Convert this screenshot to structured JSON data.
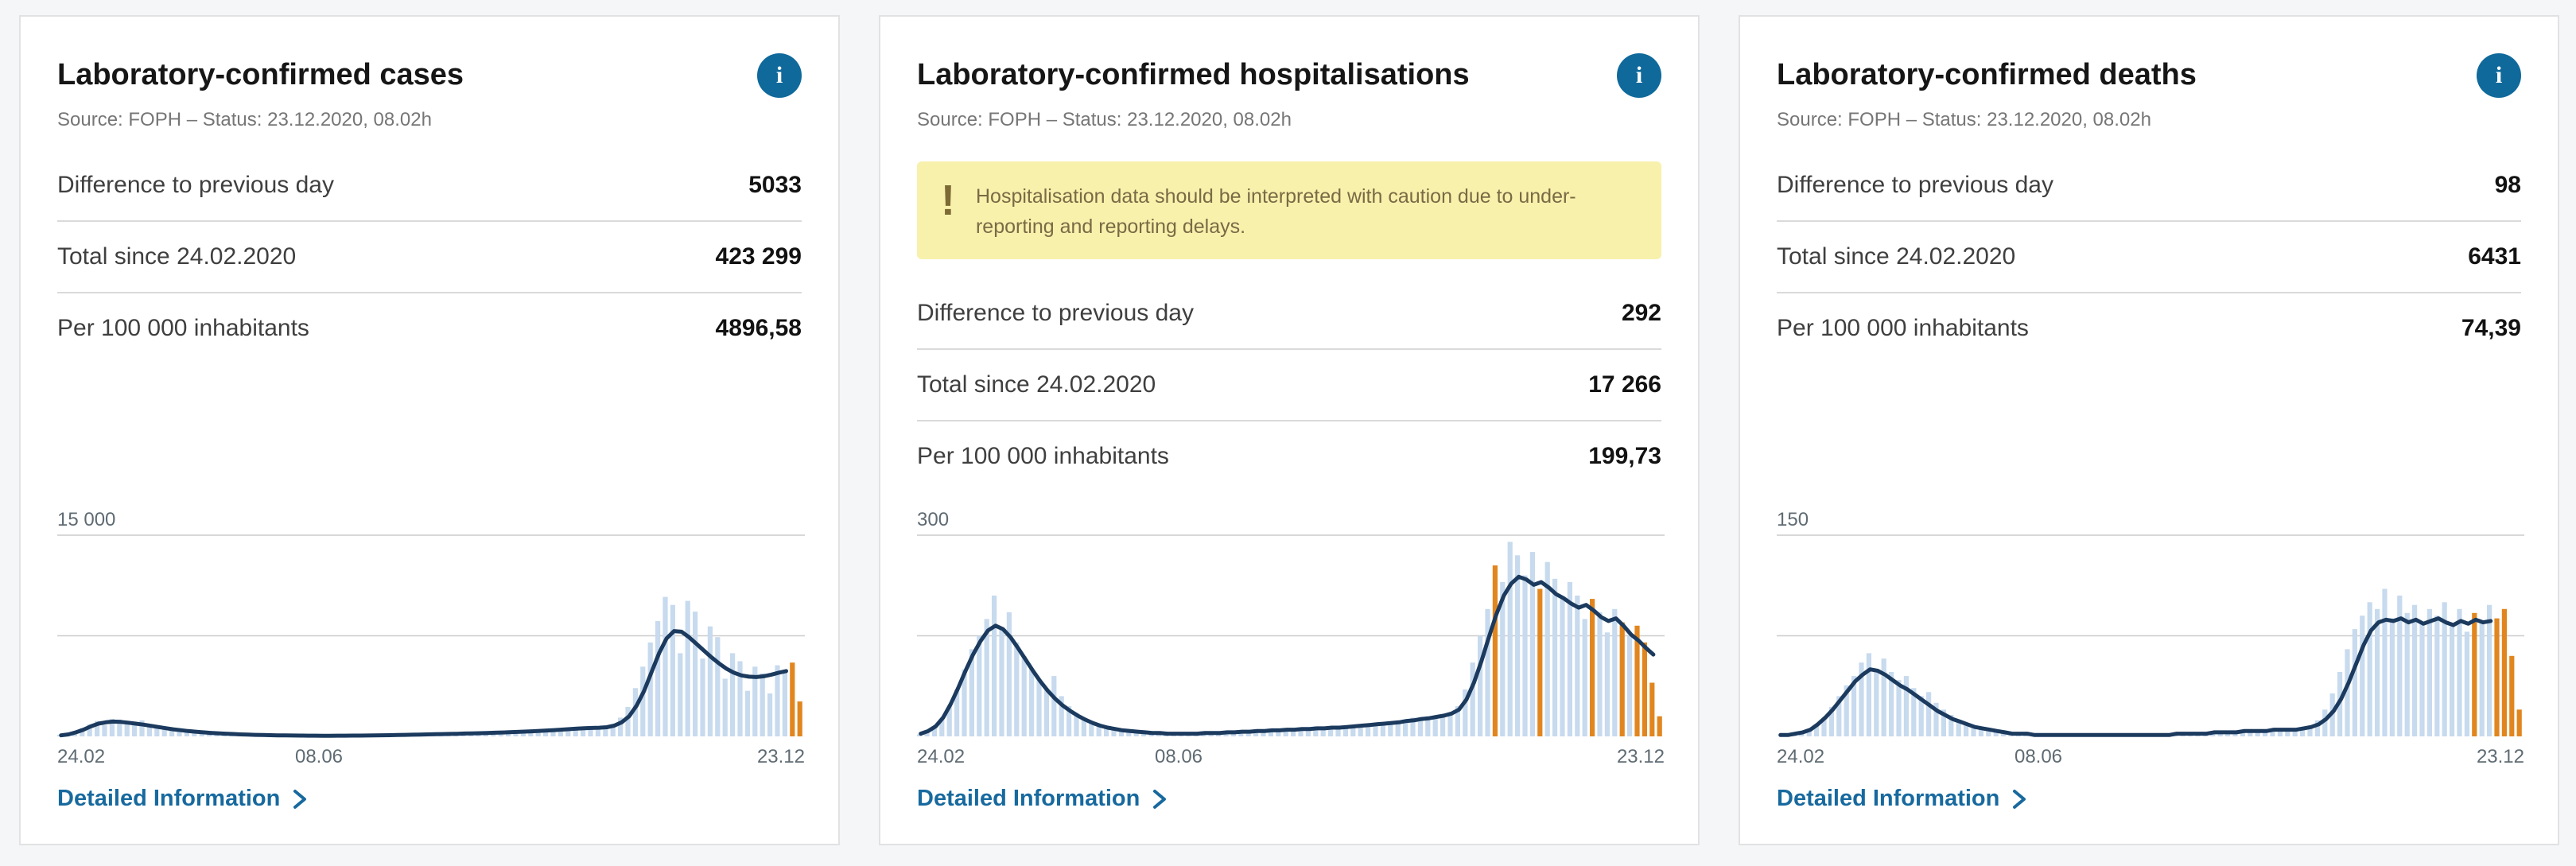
{
  "icons": {
    "info": "i",
    "warning": "!"
  },
  "colors": {
    "page_background": "#f4f6f8",
    "card_border": "#e2e2e2",
    "accent_link": "#17699e",
    "info_badge": "#0f699b",
    "warning_background": "#f8f1ac",
    "warning_foreground": "#7a6a45"
  },
  "cards": [
    {
      "title": "Laboratory-confirmed cases",
      "source": "Source: FOPH – Status: 23.12.2020, 08.02h",
      "stats": [
        {
          "label": "Difference to previous day",
          "value": "5033"
        },
        {
          "label": "Total since 24.02.2020",
          "value": "423 299"
        },
        {
          "label": "Per 100 000 inhabitants",
          "value": "4896,58"
        }
      ],
      "link_label": "Detailed Information"
    },
    {
      "title": "Laboratory-confirmed hospitalisations",
      "source": "Source: FOPH – Status: 23.12.2020, 08.02h",
      "warning_text": "Hospitalisation data should be interpreted with caution due to under-reporting and reporting delays.",
      "stats": [
        {
          "label": "Difference to previous day",
          "value": "292"
        },
        {
          "label": "Total since 24.02.2020",
          "value": "17 266"
        },
        {
          "label": "Per 100 000 inhabitants",
          "value": "199,73"
        }
      ],
      "link_label": "Detailed Information"
    },
    {
      "title": "Laboratory-confirmed deaths",
      "source": "Source: FOPH – Status: 23.12.2020, 08.02h",
      "stats": [
        {
          "label": "Difference to previous day",
          "value": "98"
        },
        {
          "label": "Total since 24.02.2020",
          "value": "6431"
        },
        {
          "label": "Per 100 000 inhabitants",
          "value": "74,39"
        }
      ],
      "link_label": "Detailed Information"
    }
  ],
  "chart_data": [
    {
      "type": "bar",
      "title": "",
      "x_ticks": [
        "24.02",
        "08.06",
        "23.12"
      ],
      "x_tick_positions": [
        0,
        0.35,
        1
      ],
      "ymax": 15000,
      "ymax_label": "15 000",
      "ylim": [
        0,
        15000
      ],
      "gridlines": [
        7500,
        15000
      ],
      "bars": [
        120,
        200,
        380,
        620,
        900,
        1150,
        850,
        1300,
        1250,
        1100,
        980,
        1200,
        880,
        720,
        600,
        500,
        430,
        360,
        300,
        260,
        220,
        185,
        155,
        125,
        105,
        90,
        80,
        70,
        62,
        56,
        50,
        46,
        42,
        40,
        36,
        40,
        46,
        42,
        50,
        46,
        56,
        62,
        70,
        66,
        82,
        92,
        102,
        112,
        132,
        122,
        152,
        172,
        162,
        182,
        202,
        222,
        212,
        252,
        272,
        302,
        322,
        352,
        332,
        382,
        422,
        452,
        482,
        522,
        502,
        552,
        602,
        582,
        652,
        702,
        900,
        1400,
        2200,
        3600,
        5200,
        7000,
        8600,
        10400,
        9800,
        6200,
        10100,
        9300,
        5800,
        8200,
        7400,
        4300,
        6200,
        5600,
        3400,
        5200,
        4700,
        3200,
        5300,
        4800,
        5500,
        2600
      ],
      "line": [
        80,
        150,
        300,
        500,
        750,
        950,
        1050,
        1100,
        1080,
        1020,
        950,
        880,
        790,
        700,
        610,
        530,
        460,
        400,
        350,
        300,
        260,
        230,
        200,
        175,
        150,
        130,
        115,
        100,
        90,
        80,
        72,
        65,
        60,
        56,
        52,
        50,
        50,
        52,
        55,
        58,
        62,
        68,
        75,
        82,
        90,
        100,
        110,
        122,
        135,
        148,
        160,
        172,
        185,
        198,
        212,
        226,
        240,
        255,
        272,
        290,
        310,
        332,
        355,
        380,
        408,
        438,
        470,
        505,
        540,
        575,
        605,
        628,
        648,
        680,
        800,
        1050,
        1500,
        2300,
        3400,
        4800,
        6200,
        7300,
        7850,
        7800,
        7400,
        6900,
        6400,
        5900,
        5450,
        5050,
        4750,
        4550,
        4450,
        4420,
        4480,
        4600,
        4750,
        4870,
        null,
        null
      ],
      "orange_indices": [
        98,
        99
      ],
      "colors": {
        "bar": "#c7daee",
        "line": "#1b3a5e",
        "provisional": "#e1861f",
        "grid": "#cccccc",
        "tick": "#5f6b73"
      }
    },
    {
      "type": "bar",
      "title": "",
      "x_ticks": [
        "24.02",
        "08.06",
        "23.12"
      ],
      "x_tick_positions": [
        0,
        0.35,
        1
      ],
      "ymax": 300,
      "ymax_label": "300",
      "ylim": [
        0,
        300
      ],
      "gridlines": [
        150,
        300
      ],
      "bars": [
        3,
        6,
        12,
        25,
        45,
        70,
        100,
        130,
        150,
        175,
        210,
        160,
        185,
        140,
        120,
        100,
        85,
        70,
        90,
        60,
        45,
        35,
        28,
        22,
        18,
        14,
        10,
        8,
        7,
        6,
        5,
        4,
        5,
        4,
        3,
        4,
        3,
        4,
        5,
        4,
        5,
        6,
        8,
        6,
        9,
        7,
        10,
        8,
        11,
        9,
        12,
        10,
        13,
        11,
        14,
        12,
        15,
        13,
        16,
        18,
        15,
        20,
        17,
        22,
        19,
        25,
        28,
        24,
        30,
        26,
        32,
        35,
        45,
        70,
        110,
        150,
        190,
        255,
        230,
        290,
        270,
        240,
        275,
        220,
        260,
        235,
        205,
        230,
        210,
        175,
        205,
        185,
        155,
        190,
        170,
        150,
        165,
        140,
        80,
        30
      ],
      "line": [
        4,
        8,
        15,
        28,
        48,
        72,
        98,
        122,
        142,
        158,
        165,
        160,
        148,
        132,
        115,
        98,
        82,
        68,
        56,
        46,
        38,
        31,
        25,
        20,
        16,
        13,
        11,
        9,
        8,
        7,
        6,
        5,
        5,
        4,
        4,
        4,
        4,
        4,
        5,
        5,
        5,
        6,
        6,
        7,
        7,
        8,
        8,
        9,
        9,
        10,
        10,
        11,
        11,
        12,
        12,
        13,
        13,
        14,
        15,
        16,
        17,
        18,
        19,
        20,
        21,
        23,
        24,
        26,
        27,
        29,
        31,
        34,
        40,
        55,
        80,
        112,
        148,
        182,
        210,
        228,
        238,
        234,
        226,
        230,
        222,
        212,
        206,
        198,
        192,
        196,
        188,
        178,
        172,
        176,
        165,
        152,
        143,
        132,
        122,
        null
      ],
      "orange_indices": [
        77,
        83,
        90,
        94,
        96,
        97,
        98,
        99
      ],
      "colors": {
        "bar": "#c7daee",
        "line": "#1b3a5e",
        "provisional": "#e1861f",
        "grid": "#cccccc",
        "tick": "#5f6b73"
      }
    },
    {
      "type": "bar",
      "title": "",
      "x_ticks": [
        "24.02",
        "08.06",
        "23.12"
      ],
      "x_tick_positions": [
        0,
        0.35,
        1
      ],
      "ymax": 150,
      "ymax_label": "150",
      "ylim": [
        0,
        150
      ],
      "gridlines": [
        75,
        150
      ],
      "bars": [
        0,
        0,
        1,
        2,
        4,
        8,
        14,
        22,
        30,
        38,
        45,
        55,
        62,
        50,
        58,
        48,
        42,
        45,
        36,
        30,
        33,
        25,
        20,
        16,
        12,
        10,
        8,
        6,
        4,
        3,
        2,
        2,
        1,
        1,
        1,
        1,
        1,
        0,
        1,
        0,
        1,
        1,
        0,
        1,
        1,
        0,
        1,
        1,
        1,
        0,
        1,
        1,
        1,
        1,
        2,
        1,
        2,
        2,
        3,
        2,
        4,
        3,
        5,
        4,
        3,
        5,
        4,
        6,
        5,
        4,
        6,
        8,
        12,
        20,
        32,
        48,
        65,
        80,
        90,
        100,
        95,
        110,
        88,
        105,
        92,
        98,
        85,
        95,
        90,
        100,
        82,
        95,
        78,
        92,
        85,
        98,
        88,
        95,
        60,
        20
      ],
      "line": [
        1,
        1,
        2,
        3,
        5,
        9,
        14,
        20,
        27,
        34,
        41,
        46,
        50,
        49,
        46,
        42,
        38,
        35,
        31,
        27,
        23,
        19,
        16,
        13,
        11,
        9,
        7,
        6,
        5,
        4,
        3,
        2,
        2,
        2,
        1,
        1,
        1,
        1,
        1,
        1,
        1,
        1,
        1,
        1,
        1,
        1,
        1,
        1,
        1,
        1,
        1,
        1,
        1,
        2,
        2,
        2,
        2,
        2,
        3,
        3,
        3,
        3,
        4,
        4,
        4,
        4,
        5,
        5,
        5,
        5,
        6,
        7,
        9,
        13,
        19,
        28,
        40,
        54,
        68,
        79,
        85,
        87,
        86,
        88,
        85,
        87,
        84,
        86,
        88,
        85,
        83,
        86,
        84,
        87,
        85,
        86,
        null,
        null,
        null,
        null
      ],
      "orange_indices": [
        93,
        96,
        97,
        98,
        99
      ],
      "colors": {
        "bar": "#c7daee",
        "line": "#1b3a5e",
        "provisional": "#e1861f",
        "grid": "#cccccc",
        "tick": "#5f6b73"
      }
    }
  ]
}
